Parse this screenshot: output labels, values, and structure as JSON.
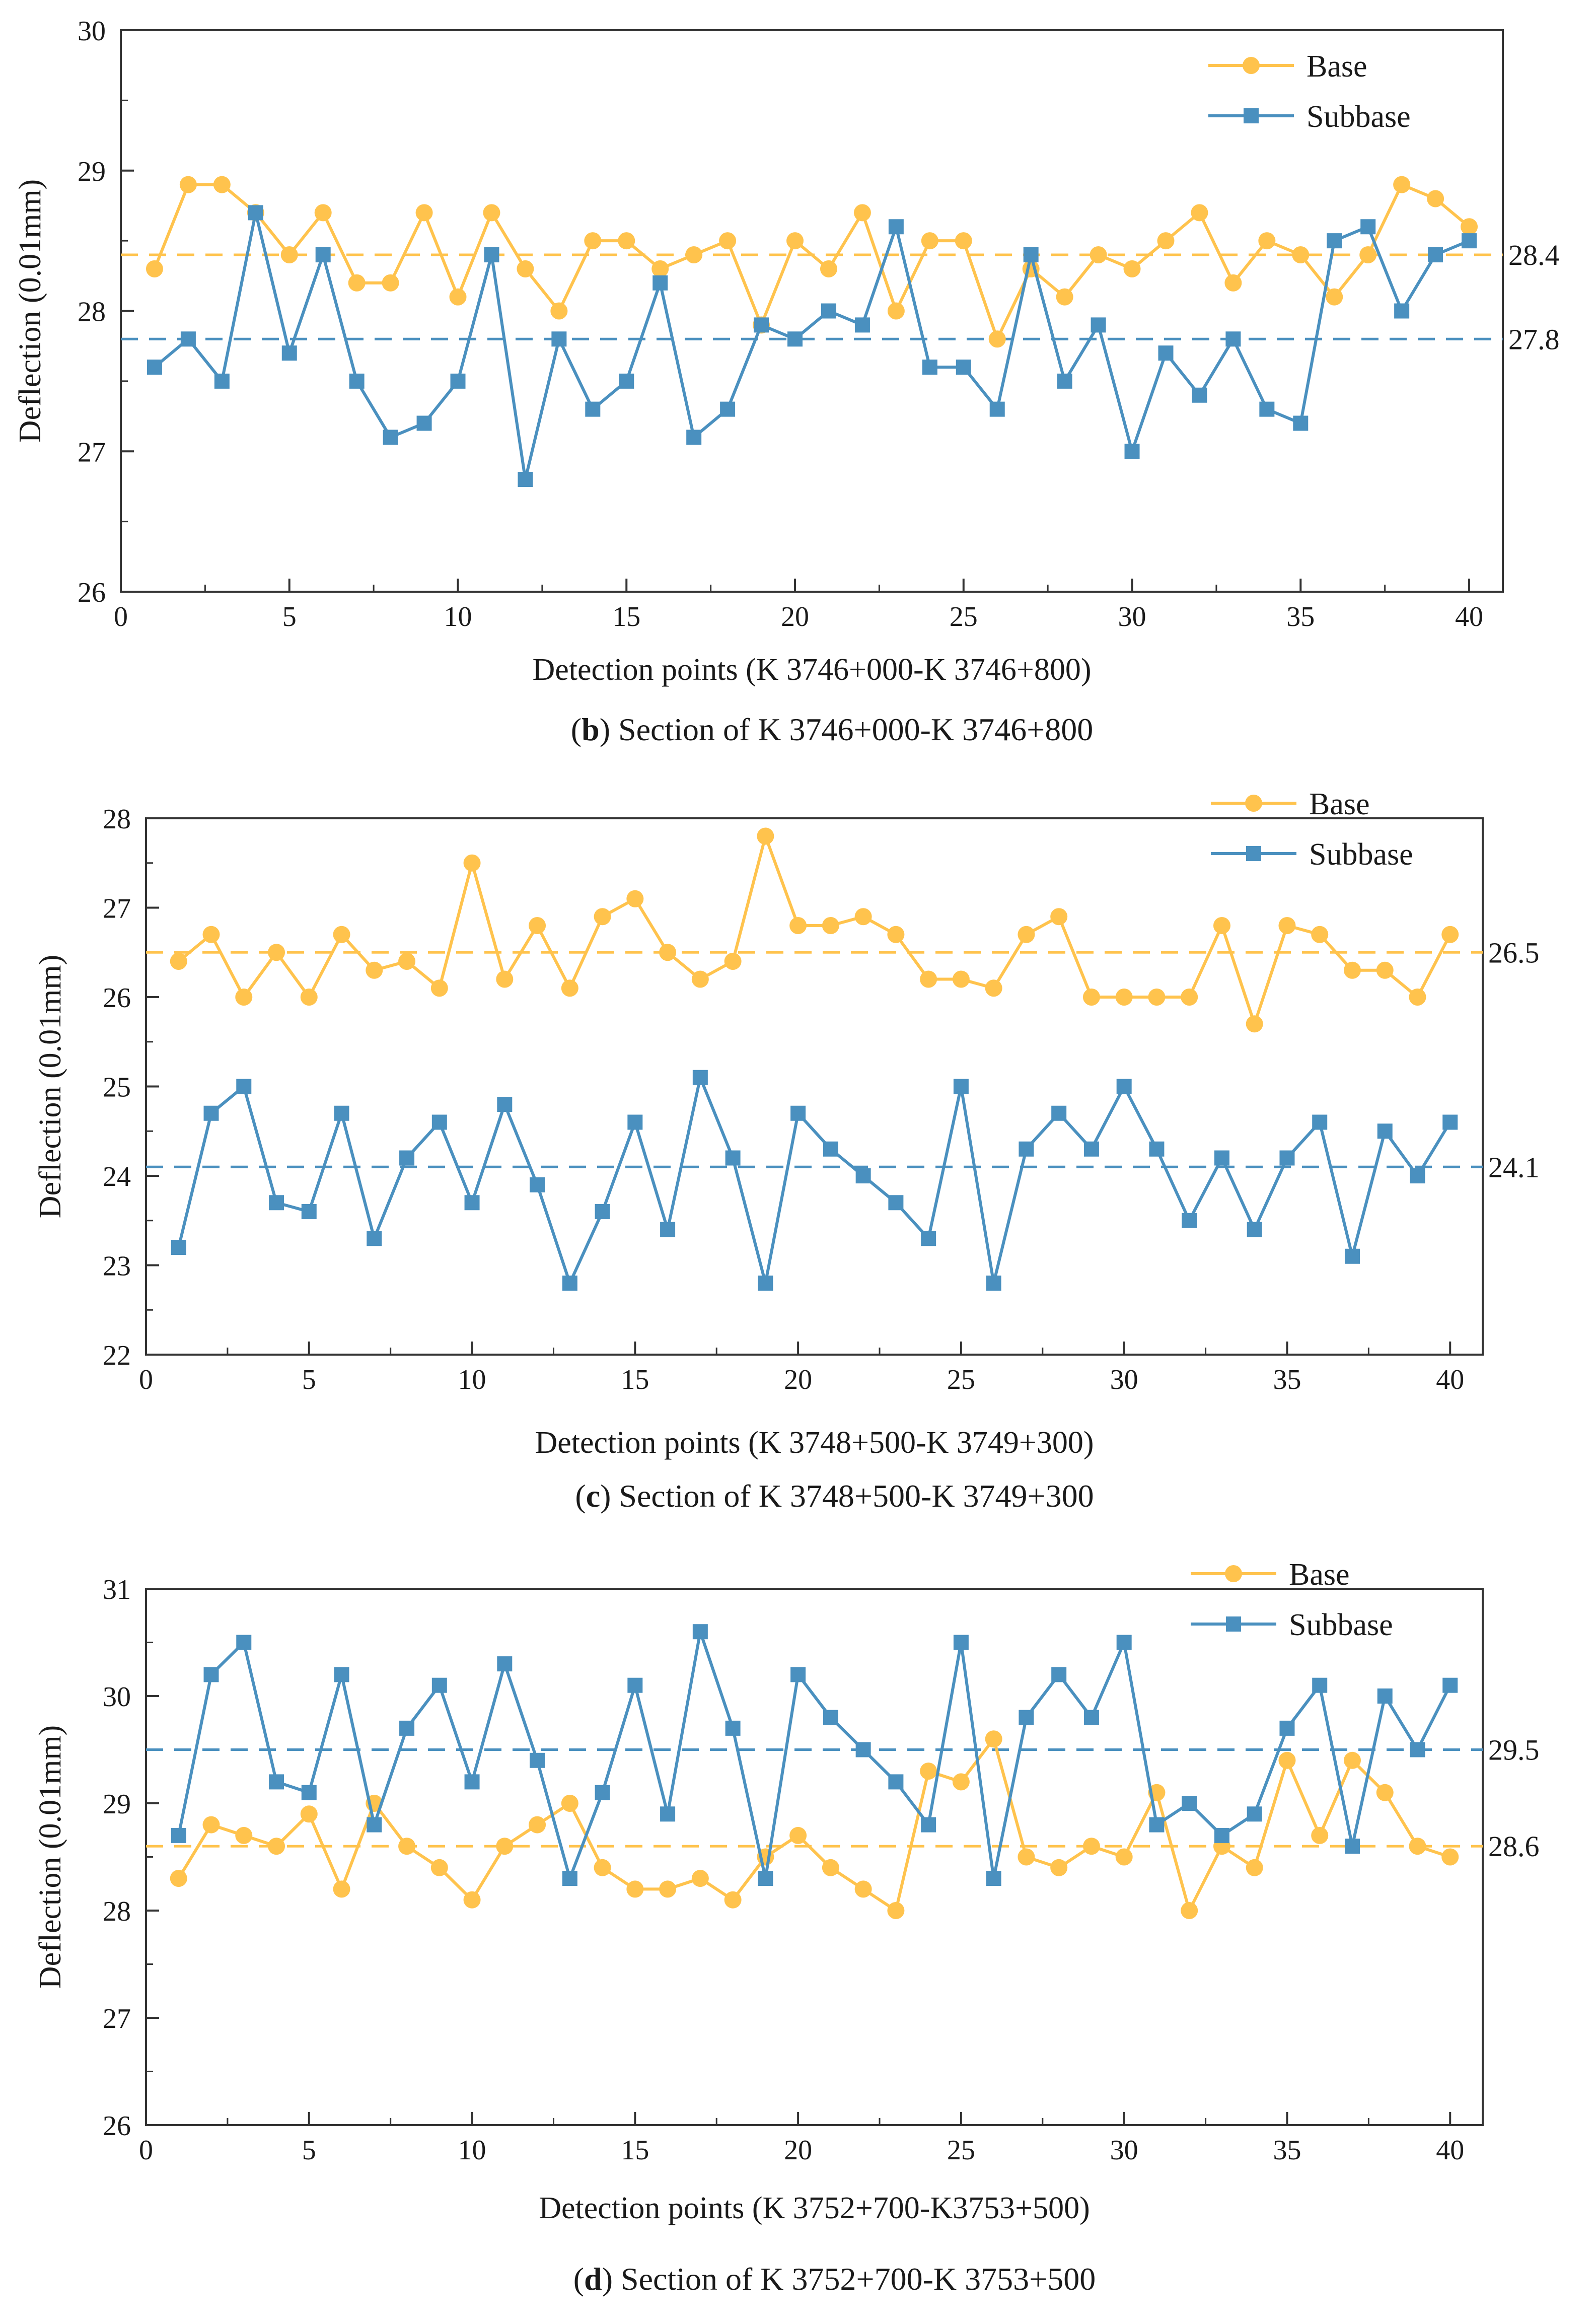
{
  "colors": {
    "base": "#FFC34D",
    "subbase": "#4A90BF",
    "axis": "#333333",
    "text": "#1a1a1a"
  },
  "chart_data": [
    {
      "type": "line",
      "panel": "b",
      "caption_letter": "(b)",
      "caption_text": " Section of K 3746+000-K 3746+800",
      "xlabel": "Detection points (K 3746+000-K 3746+800)",
      "ylabel": "Deflection (0.01mm)",
      "xlim": [
        0,
        41
      ],
      "ylim": [
        26,
        30
      ],
      "xticks": [
        0,
        5,
        10,
        15,
        20,
        25,
        30,
        35,
        40
      ],
      "yticks": [
        26,
        27,
        28,
        29,
        30
      ],
      "legend_position": "top-right",
      "x": [
        1,
        2,
        3,
        4,
        5,
        6,
        7,
        8,
        9,
        10,
        11,
        12,
        13,
        14,
        15,
        16,
        17,
        18,
        19,
        20,
        21,
        22,
        23,
        24,
        25,
        26,
        27,
        28,
        29,
        30,
        31,
        32,
        33,
        34,
        35,
        36,
        37,
        38,
        39,
        40
      ],
      "series": [
        {
          "name": "Base",
          "marker": "circle",
          "values": [
            28.3,
            28.9,
            28.9,
            28.7,
            28.4,
            28.7,
            28.2,
            28.2,
            28.7,
            28.1,
            28.7,
            28.3,
            28.0,
            28.5,
            28.5,
            28.3,
            28.4,
            28.5,
            27.9,
            28.5,
            28.3,
            28.7,
            28.0,
            28.5,
            28.5,
            27.8,
            28.3,
            28.1,
            28.4,
            28.3,
            28.5,
            28.7,
            28.2,
            28.5,
            28.4,
            28.1,
            28.4,
            28.9,
            28.8,
            28.6
          ]
        },
        {
          "name": "Subbase",
          "marker": "square",
          "values": [
            27.6,
            27.8,
            27.5,
            28.7,
            27.7,
            28.4,
            27.5,
            27.1,
            27.2,
            27.5,
            28.4,
            26.8,
            27.8,
            27.3,
            27.5,
            28.2,
            27.1,
            27.3,
            27.9,
            27.8,
            28.0,
            27.9,
            28.6,
            27.6,
            27.6,
            27.3,
            28.4,
            27.5,
            27.9,
            27.0,
            27.7,
            27.4,
            27.8,
            27.3,
            27.2,
            28.5,
            28.6,
            28.0,
            28.4,
            28.5
          ]
        }
      ],
      "reference_lines": [
        {
          "series": "Base",
          "value": 28.4,
          "label": "28.4"
        },
        {
          "series": "Subbase",
          "value": 27.8,
          "label": "27.8"
        }
      ]
    },
    {
      "type": "line",
      "panel": "c",
      "caption_letter": "(c)",
      "caption_text": " Section of K 3748+500-K 3749+300",
      "xlabel": "Detection points (K 3748+500-K 3749+300)",
      "ylabel": "Deflection (0.01mm)",
      "xlim": [
        0,
        41
      ],
      "ylim": [
        22,
        28
      ],
      "xticks": [
        0,
        5,
        10,
        15,
        20,
        25,
        30,
        35,
        40
      ],
      "yticks": [
        22,
        23,
        24,
        25,
        26,
        27,
        28
      ],
      "legend_position": "top-right",
      "x": [
        1,
        2,
        3,
        4,
        5,
        6,
        7,
        8,
        9,
        10,
        11,
        12,
        13,
        14,
        15,
        16,
        17,
        18,
        19,
        20,
        21,
        22,
        23,
        24,
        25,
        26,
        27,
        28,
        29,
        30,
        31,
        32,
        33,
        34,
        35,
        36,
        37,
        38,
        39,
        40
      ],
      "series": [
        {
          "name": "Base",
          "marker": "circle",
          "values": [
            26.4,
            26.7,
            26.0,
            26.5,
            26.0,
            26.7,
            26.3,
            26.4,
            26.1,
            27.5,
            26.2,
            26.8,
            26.1,
            26.9,
            27.1,
            26.5,
            26.2,
            26.4,
            27.8,
            26.8,
            26.8,
            26.9,
            26.7,
            26.2,
            26.2,
            26.1,
            26.7,
            26.9,
            26.0,
            26.0,
            26.0,
            26.0,
            26.8,
            25.7,
            26.8,
            26.7,
            26.3,
            26.3,
            26.0,
            26.7
          ]
        },
        {
          "name": "Subbase",
          "marker": "square",
          "values": [
            23.2,
            24.7,
            25.0,
            23.7,
            23.6,
            24.7,
            23.3,
            24.2,
            24.6,
            23.7,
            24.8,
            23.9,
            22.8,
            23.6,
            24.6,
            23.4,
            25.1,
            24.2,
            22.8,
            24.7,
            24.3,
            24.0,
            23.7,
            23.3,
            25.0,
            22.8,
            24.3,
            24.7,
            24.3,
            25.0,
            24.3,
            23.5,
            24.2,
            23.4,
            24.2,
            24.6,
            23.1,
            24.5,
            24.0,
            24.6
          ]
        }
      ],
      "reference_lines": [
        {
          "series": "Base",
          "value": 26.5,
          "label": "26.5"
        },
        {
          "series": "Subbase",
          "value": 24.1,
          "label": "24.1"
        }
      ]
    },
    {
      "type": "line",
      "panel": "d",
      "caption_letter": "(d)",
      "caption_text": " Section of K 3752+700-K 3753+500",
      "xlabel": "Detection points (K 3752+700-K3753+500)",
      "ylabel": "Deflection (0.01mm)",
      "xlim": [
        0,
        41
      ],
      "ylim": [
        26,
        31
      ],
      "xticks": [
        0,
        5,
        10,
        15,
        20,
        25,
        30,
        35,
        40
      ],
      "yticks": [
        26,
        27,
        28,
        29,
        30,
        31
      ],
      "legend_position": "top-right",
      "x": [
        1,
        2,
        3,
        4,
        5,
        6,
        7,
        8,
        9,
        10,
        11,
        12,
        13,
        14,
        15,
        16,
        17,
        18,
        19,
        20,
        21,
        22,
        23,
        24,
        25,
        26,
        27,
        28,
        29,
        30,
        31,
        32,
        33,
        34,
        35,
        36,
        37,
        38,
        39,
        40
      ],
      "series": [
        {
          "name": "Base",
          "marker": "circle",
          "values": [
            28.3,
            28.8,
            28.7,
            28.6,
            28.9,
            28.2,
            29.0,
            28.6,
            28.4,
            28.1,
            28.6,
            28.8,
            29.0,
            28.4,
            28.2,
            28.2,
            28.3,
            28.1,
            28.5,
            28.7,
            28.4,
            28.2,
            28.0,
            29.3,
            29.2,
            29.6,
            28.5,
            28.4,
            28.6,
            28.5,
            29.1,
            28.0,
            28.6,
            28.4,
            29.4,
            28.7,
            29.4,
            29.1,
            28.6,
            28.5
          ]
        },
        {
          "name": "Subbase",
          "marker": "square",
          "values": [
            28.7,
            30.2,
            30.5,
            29.2,
            29.1,
            30.2,
            28.8,
            29.7,
            30.1,
            29.2,
            30.3,
            29.4,
            28.3,
            29.1,
            30.1,
            28.9,
            30.6,
            29.7,
            28.3,
            30.2,
            29.8,
            29.5,
            29.2,
            28.8,
            30.5,
            28.3,
            29.8,
            30.2,
            29.8,
            30.5,
            28.8,
            29.0,
            28.7,
            28.9,
            29.7,
            30.1,
            28.6,
            30.0,
            29.5,
            30.1
          ]
        }
      ],
      "reference_lines": [
        {
          "series": "Base",
          "value": 28.6,
          "label": "28.6"
        },
        {
          "series": "Subbase",
          "value": 29.5,
          "label": "29.5"
        }
      ]
    }
  ]
}
